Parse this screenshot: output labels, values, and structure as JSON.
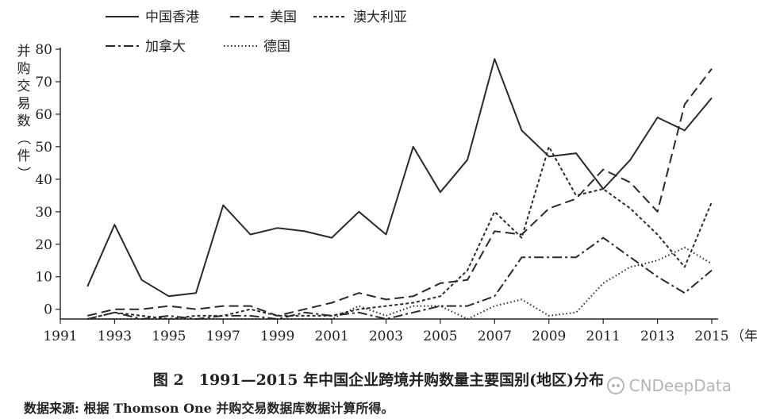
{
  "chart_data": {
    "type": "line",
    "title": "",
    "xlabel": "年份",
    "ylabel": "并购交易数（件）",
    "xlim": [
      1991,
      2015
    ],
    "ylim": [
      -3,
      80
    ],
    "x_ticks": [
      "1991",
      "1993",
      "1995",
      "1997",
      "1999",
      "2001",
      "2003",
      "2005",
      "2007",
      "2009",
      "2011",
      "2013",
      "2015"
    ],
    "y_ticks": [
      "0",
      "10",
      "20",
      "30",
      "40",
      "50",
      "60",
      "70",
      "80"
    ],
    "grid": false,
    "legend_position": "top",
    "x": [
      1992,
      1993,
      1994,
      1995,
      1996,
      1997,
      1998,
      1999,
      2000,
      2001,
      2002,
      2003,
      2004,
      2005,
      2006,
      2007,
      2008,
      2009,
      2010,
      2011,
      2012,
      2013,
      2014,
      2015
    ],
    "series": [
      {
        "name": "中国香港",
        "style": "solid",
        "values": [
          7,
          26,
          9,
          4,
          5,
          32,
          23,
          25,
          24,
          22,
          30,
          23,
          50,
          36,
          46,
          77,
          55,
          47,
          48,
          37,
          46,
          59,
          55,
          65
        ]
      },
      {
        "name": "美国",
        "style": "dashed",
        "values": [
          -2,
          0,
          0,
          1,
          0,
          1,
          1,
          -2,
          0,
          2,
          5,
          3,
          4,
          8,
          9,
          24,
          23,
          31,
          34,
          43,
          39,
          30,
          63,
          74
        ]
      },
      {
        "name": "澳大利亚",
        "style": "short-dashed",
        "values": [
          -3,
          -1,
          -2,
          -3,
          -2,
          -2,
          0,
          -2,
          -2,
          -2,
          0,
          1,
          2,
          4,
          12,
          30,
          22,
          50,
          35,
          37,
          31,
          23,
          13,
          33
        ]
      },
      {
        "name": "加拿大",
        "style": "dash-dot",
        "values": [
          -3,
          -1,
          -3,
          -2,
          -3,
          -2,
          -2,
          -3,
          -1,
          -2,
          -1,
          -3,
          -1,
          1,
          1,
          4,
          16,
          16,
          16,
          22,
          16,
          10,
          5,
          12
        ]
      },
      {
        "name": "德国",
        "style": "dotted",
        "values": [
          -3,
          -3,
          -3,
          -3,
          -3,
          -3,
          -3,
          -3,
          -3,
          -3,
          1,
          -2,
          1,
          1,
          -3,
          1,
          3,
          -2,
          -1,
          8,
          13,
          15,
          19,
          14
        ]
      }
    ]
  },
  "caption": "图 2　1991—2015 年中国企业跨境并购数量主要国别(地区)分布",
  "source_note": "数据来源: 根据 Thomson One 并购交易数据库数据计算所得。",
  "watermark": "CNDeepData"
}
